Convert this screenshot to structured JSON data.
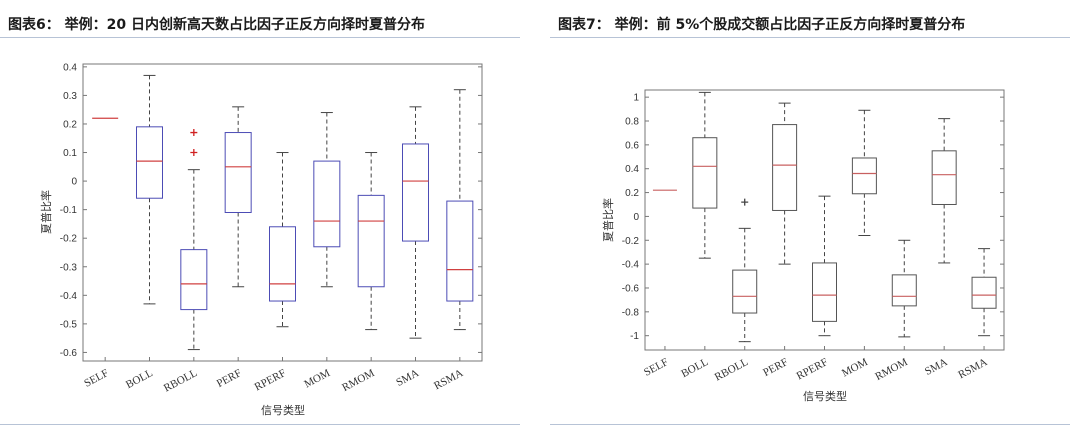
{
  "chart_data": [
    {
      "type": "boxplot",
      "title": "图表6：  举例：20 日内创新高天数占比因子正反方向择时夏普分布",
      "xlabel": "信号类型",
      "ylabel": "夏普比率",
      "ylim": [
        -0.63,
        0.41
      ],
      "yticks": [
        0.4,
        0.3,
        0.2,
        0.1,
        0,
        -0.1,
        -0.2,
        -0.3,
        -0.4,
        -0.5,
        -0.6
      ],
      "ytick_labels": [
        "0.4",
        "0.3",
        "0.2",
        "0.1",
        "0",
        "-0.1",
        "-0.2",
        "-0.3",
        "-0.4",
        "-0.5",
        "-0.6"
      ],
      "categories": [
        "SELF",
        "BOLL",
        "RBOLL",
        "PERF",
        "RPERF",
        "MOM",
        "RMOM",
        "SMA",
        "RSMA"
      ],
      "boxes": [
        {
          "min": 0.22,
          "q1": 0.22,
          "median": 0.22,
          "q3": 0.22,
          "max": 0.22,
          "outliers": []
        },
        {
          "min": -0.43,
          "q1": -0.06,
          "median": 0.07,
          "q3": 0.19,
          "max": 0.37,
          "outliers": []
        },
        {
          "min": -0.59,
          "q1": -0.45,
          "median": -0.36,
          "q3": -0.24,
          "max": 0.04,
          "outliers": [
            0.1,
            0.17
          ]
        },
        {
          "min": -0.37,
          "q1": -0.11,
          "median": 0.05,
          "q3": 0.17,
          "max": 0.26,
          "outliers": []
        },
        {
          "min": -0.51,
          "q1": -0.42,
          "median": -0.36,
          "q3": -0.16,
          "max": 0.1,
          "outliers": []
        },
        {
          "min": -0.37,
          "q1": -0.23,
          "median": -0.14,
          "q3": 0.07,
          "max": 0.24,
          "outliers": []
        },
        {
          "min": -0.52,
          "q1": -0.37,
          "median": -0.14,
          "q3": -0.05,
          "max": 0.1,
          "outliers": []
        },
        {
          "min": -0.55,
          "q1": -0.21,
          "median": 0.0,
          "q3": 0.13,
          "max": 0.26,
          "outliers": []
        },
        {
          "min": -0.52,
          "q1": -0.42,
          "median": -0.31,
          "q3": -0.07,
          "max": 0.32,
          "outliers": []
        }
      ],
      "box_color": "#4c4cb5",
      "median_color": "#d04040",
      "outlier_color": "#d02020",
      "grid": false
    },
    {
      "type": "boxplot",
      "title": "图表7：  举例：前 5%个股成交额占比因子正反方向择时夏普分布",
      "xlabel": "信号类型",
      "ylabel": "夏普比率",
      "ylim": [
        -1.12,
        1.06
      ],
      "yticks": [
        1,
        0.8,
        0.6,
        0.4,
        0.2,
        0,
        -0.2,
        -0.4,
        -0.6,
        -0.8,
        -1
      ],
      "ytick_labels": [
        "1",
        "0.8",
        "0.6",
        "0.4",
        "0.2",
        "0",
        "-0.2",
        "-0.4",
        "-0.6",
        "-0.8",
        "-1"
      ],
      "categories": [
        "SELF",
        "BOLL",
        "RBOLL",
        "PERF",
        "RPERF",
        "MOM",
        "RMOM",
        "SMA",
        "RSMA"
      ],
      "boxes": [
        {
          "min": 0.22,
          "q1": 0.22,
          "median": 0.22,
          "q3": 0.22,
          "max": 0.22,
          "outliers": []
        },
        {
          "min": -0.35,
          "q1": 0.07,
          "median": 0.42,
          "q3": 0.66,
          "max": 1.04,
          "outliers": []
        },
        {
          "min": -1.05,
          "q1": -0.81,
          "median": -0.67,
          "q3": -0.45,
          "max": -0.1,
          "outliers": [
            0.12
          ]
        },
        {
          "min": -0.4,
          "q1": 0.05,
          "median": 0.43,
          "q3": 0.77,
          "max": 0.95,
          "outliers": []
        },
        {
          "min": -1.0,
          "q1": -0.88,
          "median": -0.66,
          "q3": -0.39,
          "max": 0.17,
          "outliers": []
        },
        {
          "min": -0.16,
          "q1": 0.19,
          "median": 0.36,
          "q3": 0.49,
          "max": 0.89,
          "outliers": []
        },
        {
          "min": -1.01,
          "q1": -0.75,
          "median": -0.67,
          "q3": -0.49,
          "max": -0.2,
          "outliers": []
        },
        {
          "min": -0.39,
          "q1": 0.1,
          "median": 0.35,
          "q3": 0.55,
          "max": 0.82,
          "outliers": []
        },
        {
          "min": -1.0,
          "q1": -0.77,
          "median": -0.66,
          "q3": -0.51,
          "max": -0.27,
          "outliers": []
        }
      ],
      "box_color": "#555555",
      "median_color": "#c86060",
      "outlier_color": "#444444",
      "grid": false
    }
  ]
}
